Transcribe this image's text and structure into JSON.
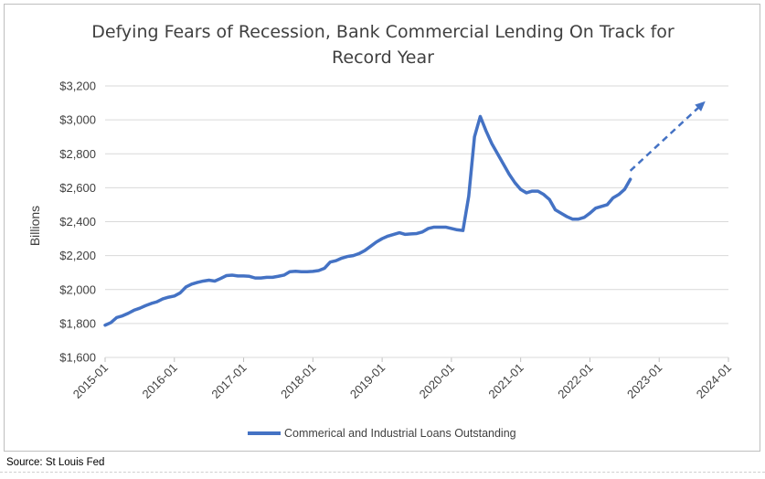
{
  "chart_data": {
    "type": "line",
    "title_lines": [
      "Defying Fears of Recession, Bank Commercial Lending On Track for",
      "Record Year"
    ],
    "xlabel": "",
    "ylabel": "Billions",
    "ylim": [
      1600,
      3200
    ],
    "yticks": [
      1600,
      1800,
      2000,
      2200,
      2400,
      2600,
      2800,
      3000,
      3200
    ],
    "ytick_labels": [
      "$1,600",
      "$1,800",
      "$2,000",
      "$2,200",
      "$2,400",
      "$2,600",
      "$2,800",
      "$3,000",
      "$3,200"
    ],
    "xlim": [
      "2015-01",
      "2024-01"
    ],
    "xticks": [
      "2015-01",
      "2016-01",
      "2017-01",
      "2018-01",
      "2019-01",
      "2020-01",
      "2021-01",
      "2022-01",
      "2023-01",
      "2024-01"
    ],
    "grid": true,
    "legend_position": "bottom",
    "series": [
      {
        "name": "Commerical and Industrial Loans Outstanding",
        "color": "#4472c4",
        "x": [
          "2015-01",
          "2015-02",
          "2015-03",
          "2015-04",
          "2015-05",
          "2015-06",
          "2015-07",
          "2015-08",
          "2015-09",
          "2015-10",
          "2015-11",
          "2015-12",
          "2016-01",
          "2016-02",
          "2016-03",
          "2016-04",
          "2016-05",
          "2016-06",
          "2016-07",
          "2016-08",
          "2016-09",
          "2016-10",
          "2016-11",
          "2016-12",
          "2017-01",
          "2017-02",
          "2017-03",
          "2017-04",
          "2017-05",
          "2017-06",
          "2017-07",
          "2017-08",
          "2017-09",
          "2017-10",
          "2017-11",
          "2017-12",
          "2018-01",
          "2018-02",
          "2018-03",
          "2018-04",
          "2018-05",
          "2018-06",
          "2018-07",
          "2018-08",
          "2018-09",
          "2018-10",
          "2018-11",
          "2018-12",
          "2019-01",
          "2019-02",
          "2019-03",
          "2019-04",
          "2019-05",
          "2019-06",
          "2019-07",
          "2019-08",
          "2019-09",
          "2019-10",
          "2019-11",
          "2019-12",
          "2020-01",
          "2020-02",
          "2020-03",
          "2020-04",
          "2020-05",
          "2020-06",
          "2020-07",
          "2020-08",
          "2020-09",
          "2020-10",
          "2020-11",
          "2020-12",
          "2021-01",
          "2021-02",
          "2021-03",
          "2021-04",
          "2021-05",
          "2021-06",
          "2021-07",
          "2021-08",
          "2021-09",
          "2021-10",
          "2021-11",
          "2021-12",
          "2022-01",
          "2022-02",
          "2022-03",
          "2022-04",
          "2022-05",
          "2022-06",
          "2022-07",
          "2022-08"
        ],
        "values": [
          1790,
          1805,
          1835,
          1845,
          1860,
          1878,
          1890,
          1905,
          1918,
          1928,
          1945,
          1955,
          1962,
          1980,
          2015,
          2032,
          2042,
          2050,
          2055,
          2050,
          2065,
          2082,
          2085,
          2080,
          2080,
          2078,
          2068,
          2068,
          2072,
          2072,
          2078,
          2085,
          2105,
          2108,
          2105,
          2105,
          2107,
          2112,
          2125,
          2162,
          2170,
          2185,
          2195,
          2200,
          2212,
          2230,
          2255,
          2280,
          2300,
          2315,
          2325,
          2335,
          2325,
          2328,
          2330,
          2340,
          2360,
          2368,
          2368,
          2368,
          2360,
          2352,
          2348,
          2550,
          2900,
          3020,
          2935,
          2860,
          2800,
          2740,
          2680,
          2630,
          2590,
          2570,
          2580,
          2580,
          2560,
          2530,
          2470,
          2450,
          2430,
          2415,
          2415,
          2425,
          2450,
          2480,
          2490,
          2500,
          2540,
          2560,
          2590,
          2650
        ]
      }
    ],
    "trend_projection": {
      "style": "dashed",
      "x": [
        "2022-08",
        "2023-09"
      ],
      "values": [
        2700,
        3110
      ]
    }
  },
  "source_note": "Source: St Louis Fed"
}
